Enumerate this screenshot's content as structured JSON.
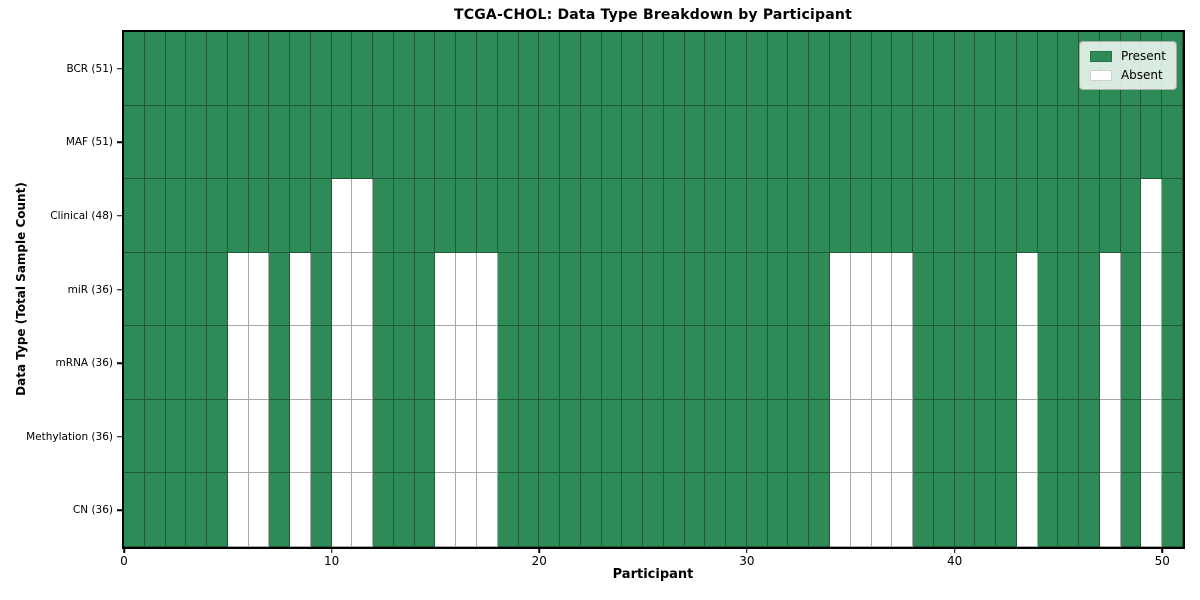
{
  "title": "TCGA-CHOL: Data Type Breakdown by Participant",
  "axes": {
    "xlabel": "Participant",
    "ylabel": "Data Type (Total Sample Count)"
  },
  "legend": {
    "items": [
      {
        "label": "Present",
        "color": "#2e8b57"
      },
      {
        "label": "Absent",
        "color": "#ffffff"
      }
    ]
  },
  "colors": {
    "present": "#2e8b57",
    "absent": "#ffffff",
    "gridline": "rgba(0,0,0,0.34)",
    "spine": "#000000"
  },
  "chart_data": {
    "type": "heatmap",
    "title": "TCGA-CHOL: Data Type Breakdown by Participant",
    "xlabel": "Participant",
    "ylabel": "Data Type (Total Sample Count)",
    "n_participants": 51,
    "x_range": [
      0,
      51
    ],
    "x_ticks": [
      0,
      10,
      20,
      30,
      40,
      50
    ],
    "cell_states": [
      "Present",
      "Absent"
    ],
    "grid": "on",
    "legend_position": "upper right",
    "rows": [
      {
        "label": "BCR (51)",
        "key": "bcr",
        "present_count": 51,
        "absent_participants": []
      },
      {
        "label": "MAF (51)",
        "key": "maf",
        "present_count": 51,
        "absent_participants": []
      },
      {
        "label": "Clinical (48)",
        "key": "clinical",
        "present_count": 48,
        "absent_participants": [
          10,
          11,
          49
        ]
      },
      {
        "label": "miR (36)",
        "key": "mir",
        "present_count": 36,
        "absent_participants": [
          5,
          6,
          8,
          10,
          11,
          15,
          16,
          17,
          34,
          35,
          36,
          37,
          43,
          47,
          49
        ]
      },
      {
        "label": "mRNA (36)",
        "key": "mrna",
        "present_count": 36,
        "absent_participants": [
          5,
          6,
          8,
          10,
          11,
          15,
          16,
          17,
          34,
          35,
          36,
          37,
          43,
          47,
          49
        ]
      },
      {
        "label": "Methylation (36)",
        "key": "methylation",
        "present_count": 36,
        "absent_participants": [
          5,
          6,
          8,
          10,
          11,
          15,
          16,
          17,
          34,
          35,
          36,
          37,
          43,
          47,
          49
        ]
      },
      {
        "label": "CN (36)",
        "key": "cn",
        "present_count": 36,
        "absent_participants": [
          5,
          6,
          8,
          10,
          11,
          15,
          16,
          17,
          34,
          35,
          36,
          37,
          43,
          47,
          49
        ]
      }
    ]
  }
}
